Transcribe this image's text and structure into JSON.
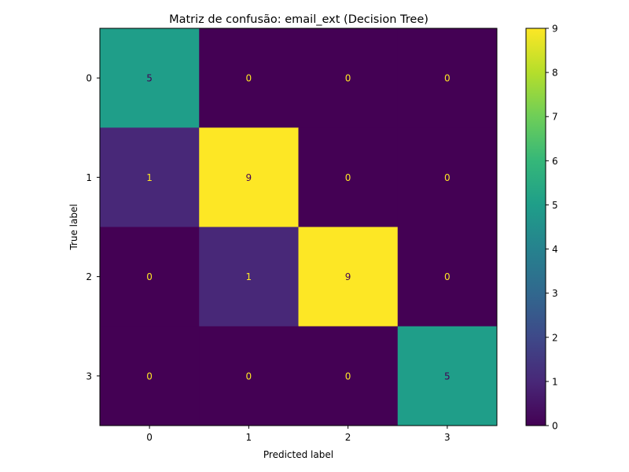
{
  "chart_data": {
    "type": "heatmap",
    "title": "Matriz de confusão: email_ext (Decision Tree)",
    "xlabel": "Predicted label",
    "ylabel": "True label",
    "x_categories": [
      "0",
      "1",
      "2",
      "3"
    ],
    "y_categories": [
      "0",
      "1",
      "2",
      "3"
    ],
    "values": [
      [
        5,
        0,
        0,
        0
      ],
      [
        1,
        9,
        0,
        0
      ],
      [
        0,
        1,
        9,
        0
      ],
      [
        0,
        0,
        0,
        5
      ]
    ],
    "colormap": "viridis",
    "colorbar": {
      "range": [
        0,
        9
      ],
      "ticks": [
        "0",
        "1",
        "2",
        "3",
        "4",
        "5",
        "6",
        "7",
        "8",
        "9"
      ]
    }
  }
}
